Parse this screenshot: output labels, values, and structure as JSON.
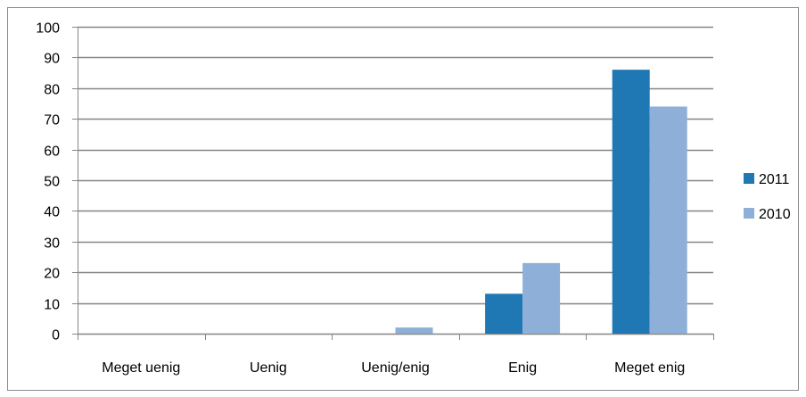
{
  "chart_data": {
    "type": "bar",
    "title": "",
    "xlabel": "",
    "ylabel": "",
    "categories": [
      "Meget uenig",
      "Uenig",
      "Uenig/enig",
      "Enig",
      "Meget enig"
    ],
    "series": [
      {
        "name": "2011",
        "values": [
          0,
          0,
          0,
          13,
          86
        ],
        "color": "#1f77b4"
      },
      {
        "name": "2010",
        "values": [
          0,
          0,
          2,
          23,
          74
        ],
        "color": "#8eb0d8"
      }
    ],
    "ylim": [
      0,
      100
    ],
    "yticks": [
      0,
      10,
      20,
      30,
      40,
      50,
      60,
      70,
      80,
      90,
      100
    ],
    "grid": true,
    "legend_position": "right"
  }
}
